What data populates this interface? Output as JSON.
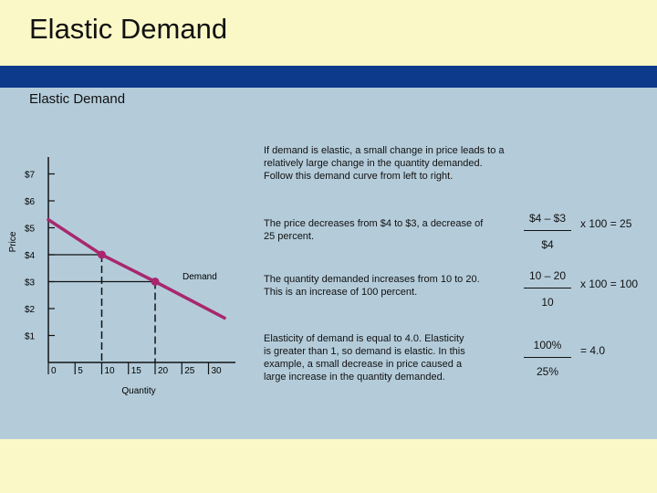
{
  "title": "Elastic Demand",
  "subtitle": "Elastic Demand",
  "chart_data": {
    "type": "line",
    "ylabel": "Price",
    "xlabel": "Quantity",
    "x_ticks": [
      0,
      5,
      10,
      15,
      20,
      25,
      30
    ],
    "x_tick_labels": [
      "0",
      "5",
      "10",
      "15",
      "20",
      "25",
      "30"
    ],
    "y_ticks": [
      1,
      2,
      3,
      4,
      5,
      6,
      7
    ],
    "y_tick_labels": [
      "$1",
      "$2",
      "$3",
      "$4",
      "$5",
      "$6",
      "$7"
    ],
    "xlim": [
      0,
      35
    ],
    "ylim": [
      0,
      8
    ],
    "series": [
      {
        "name": "Demand",
        "x": [
          0,
          10,
          20,
          33
        ],
        "y": [
          5.3,
          4,
          3,
          1.65
        ]
      }
    ],
    "highlight_points": [
      {
        "x": 10,
        "y": 4
      },
      {
        "x": 20,
        "y": 3
      }
    ],
    "color": "#a8276e"
  },
  "text": {
    "intro": "If demand is elastic, a small change in price leads to a relatively large change in the quantity demanded. Follow this demand curve from left to right.",
    "price": "The price decreases from $4 to $3, a decrease of 25 percent.",
    "quantity": "The quantity demanded increases from 10 to 20. This is  an increase of 100 percent.",
    "elasticity": "Elasticity of demand is equal to 4.0. Elasticity is greater than 1, so demand is elastic. In this example, a small decrease in price caused a large increase in the quantity demanded."
  },
  "calc": {
    "price": {
      "numerator": "$4 – $3",
      "denominator": "$4",
      "result": "x 100 = 25"
    },
    "quantity": {
      "numerator": "10 – 20",
      "denominator": "10",
      "result": "x 100 = 100"
    },
    "elasticity": {
      "numerator": "100%",
      "denominator": "25%",
      "result": "= 4.0"
    }
  }
}
